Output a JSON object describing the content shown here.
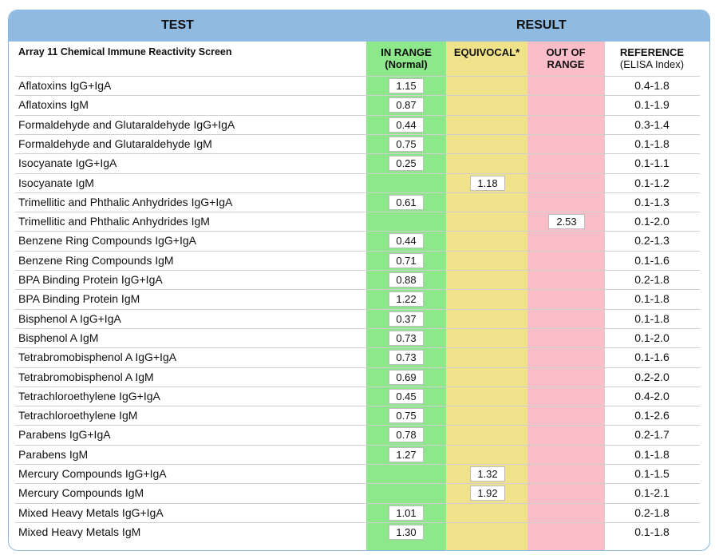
{
  "header": {
    "test_label": "TEST",
    "result_label": "RESULT"
  },
  "subheader": {
    "screen_name": "Array 11 Chemical Immune Reactivity Screen",
    "in_range_line1": "IN RANGE",
    "in_range_line2": "(Normal)",
    "equivocal": "EQUIVOCAL*",
    "out_line1": "OUT OF",
    "out_line2": "RANGE",
    "reference_line1": "REFERENCE",
    "reference_line2": "(ELISA Index)"
  },
  "colors": {
    "header_blue": "#8fbbe3",
    "in_range_green": "#8ce88a",
    "equivocal_yellow": "#efe28b",
    "out_of_range_pink": "#fbbec9"
  },
  "rows": [
    {
      "name": "Aflatoxins IgG+IgA",
      "in": "1.15",
      "eq": "",
      "out": "",
      "ref": "0.4-1.8"
    },
    {
      "name": "Aflatoxins IgM",
      "in": "0.87",
      "eq": "",
      "out": "",
      "ref": "0.1-1.9"
    },
    {
      "name": "Formaldehyde and Glutaraldehyde IgG+IgA",
      "in": "0.44",
      "eq": "",
      "out": "",
      "ref": "0.3-1.4"
    },
    {
      "name": "Formaldehyde and Glutaraldehyde IgM",
      "in": "0.75",
      "eq": "",
      "out": "",
      "ref": "0.1-1.8"
    },
    {
      "name": "Isocyanate IgG+IgA",
      "in": "0.25",
      "eq": "",
      "out": "",
      "ref": "0.1-1.1"
    },
    {
      "name": "Isocyanate IgM",
      "in": "",
      "eq": "1.18",
      "out": "",
      "ref": "0.1-1.2"
    },
    {
      "name": "Trimellitic and Phthalic Anhydrides IgG+IgA",
      "in": "0.61",
      "eq": "",
      "out": "",
      "ref": "0.1-1.3"
    },
    {
      "name": "Trimellitic and Phthalic Anhydrides IgM",
      "in": "",
      "eq": "",
      "out": "2.53",
      "ref": "0.1-2.0"
    },
    {
      "name": "Benzene Ring Compounds IgG+IgA",
      "in": "0.44",
      "eq": "",
      "out": "",
      "ref": "0.2-1.3"
    },
    {
      "name": "Benzene Ring Compounds IgM",
      "in": "0.71",
      "eq": "",
      "out": "",
      "ref": "0.1-1.6"
    },
    {
      "name": "BPA Binding Protein IgG+IgA",
      "in": "0.88",
      "eq": "",
      "out": "",
      "ref": "0.2-1.8"
    },
    {
      "name": "BPA Binding Protein IgM",
      "in": "1.22",
      "eq": "",
      "out": "",
      "ref": "0.1-1.8"
    },
    {
      "name": "Bisphenol A IgG+IgA",
      "in": "0.37",
      "eq": "",
      "out": "",
      "ref": "0.1-1.8"
    },
    {
      "name": "Bisphenol A IgM",
      "in": "0.73",
      "eq": "",
      "out": "",
      "ref": "0.1-2.0"
    },
    {
      "name": "Tetrabromobisphenol A IgG+IgA",
      "in": "0.73",
      "eq": "",
      "out": "",
      "ref": "0.1-1.6"
    },
    {
      "name": "Tetrabromobisphenol A IgM",
      "in": "0.69",
      "eq": "",
      "out": "",
      "ref": "0.2-2.0"
    },
    {
      "name": "Tetrachloroethylene IgG+IgA",
      "in": "0.45",
      "eq": "",
      "out": "",
      "ref": "0.4-2.0"
    },
    {
      "name": "Tetrachloroethylene IgM",
      "in": "0.75",
      "eq": "",
      "out": "",
      "ref": "0.1-2.6"
    },
    {
      "name": "Parabens IgG+IgA",
      "in": "0.78",
      "eq": "",
      "out": "",
      "ref": "0.2-1.7"
    },
    {
      "name": "Parabens IgM",
      "in": "1.27",
      "eq": "",
      "out": "",
      "ref": "0.1-1.8"
    },
    {
      "name": "Mercury Compounds IgG+IgA",
      "in": "",
      "eq": "1.32",
      "out": "",
      "ref": "0.1-1.5"
    },
    {
      "name": "Mercury Compounds IgM",
      "in": "",
      "eq": "1.92",
      "out": "",
      "ref": "0.1-2.1"
    },
    {
      "name": "Mixed Heavy Metals IgG+IgA",
      "in": "1.01",
      "eq": "",
      "out": "",
      "ref": "0.2-1.8"
    },
    {
      "name": "Mixed Heavy Metals IgM",
      "in": "1.30",
      "eq": "",
      "out": "",
      "ref": "0.1-1.8"
    }
  ]
}
